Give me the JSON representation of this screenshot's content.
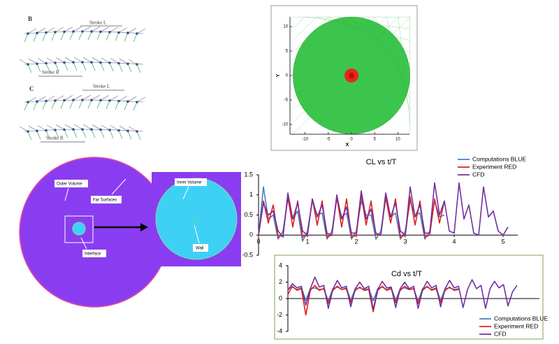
{
  "diagrams": {
    "wing_strokes": {
      "panels": [
        {
          "label": "B",
          "strokes": [
            "Stroke L",
            "Stroke R"
          ]
        },
        {
          "label": "C",
          "strokes": [
            "Stroke L",
            "Stroke R"
          ]
        }
      ]
    },
    "domain": {
      "labels": [
        "Outer Volume",
        "Far Surfaces",
        "Interface"
      ],
      "inset_labels": [
        "Inner Volume",
        "Wall"
      ]
    }
  },
  "chart_data": [
    {
      "type": "mesh",
      "xlabel": "X",
      "ylabel": "Y",
      "xlim": [
        -12.5,
        12.5
      ],
      "xticks": [
        -10,
        -5,
        0,
        5,
        10
      ],
      "ylim": [
        -12,
        12
      ],
      "yticks": [
        -10,
        -5,
        0,
        5,
        10
      ],
      "colors": [
        "#3cc54c",
        "#e8261e"
      ]
    },
    {
      "type": "line",
      "title": "CL vs t/T",
      "legend": "upper right",
      "xlim": [
        0,
        5.3
      ],
      "xticks": [
        0,
        1,
        2,
        3,
        4,
        5
      ],
      "ylim": [
        -0.5,
        1.5
      ],
      "yticks": [
        -0.5,
        0,
        0.5,
        1,
        1.5
      ],
      "x": [
        0,
        0.1,
        0.2,
        0.3,
        0.4,
        0.5,
        0.6,
        0.7,
        0.8,
        0.9,
        1,
        1.1,
        1.2,
        1.3,
        1.4,
        1.5,
        1.6,
        1.7,
        1.8,
        1.9,
        2,
        2.1,
        2.2,
        2.3,
        2.4,
        2.5,
        2.6,
        2.7,
        2.8,
        2.9,
        3,
        3.1,
        3.2,
        3.3,
        3.4,
        3.5,
        3.6,
        3.7,
        3.8,
        3.9,
        4,
        4.1,
        4.2,
        4.3,
        4.4,
        4.5,
        4.6,
        4.7,
        4.8,
        4.9,
        5,
        5.1
      ],
      "series": [
        {
          "name": "Computations BLUE",
          "color": "#4a7ebb",
          "values": [
            0,
            1.2,
            0.4,
            0.5,
            -0.1,
            0.1,
            0.9,
            0.4,
            0.6,
            -0.15,
            0.1,
            0.85,
            0.5,
            0.55,
            -0.1,
            0.1,
            0.9,
            0.45,
            0.55,
            -0.1,
            0.1,
            0.85,
            0.5,
            0.5,
            -0.1,
            0.1,
            0.9,
            0.45,
            0.55,
            -0.1,
            0.1,
            0.85,
            0.5,
            0.55,
            -0.1,
            0.1,
            0.85,
            0.45,
            0.5,
            null,
            null,
            null,
            null,
            null,
            null,
            null,
            null,
            null,
            null,
            null,
            null,
            null
          ]
        },
        {
          "name": "Experiment RED",
          "color": "#e0201b",
          "values": [
            0,
            0.85,
            0.3,
            0.75,
            -0.05,
            0,
            0.95,
            0.2,
            0.85,
            -0.05,
            0,
            0.9,
            0.25,
            0.85,
            -0.05,
            0,
            0.95,
            0.2,
            0.9,
            -0.05,
            0,
            1.0,
            0.25,
            0.85,
            0,
            0,
            0.95,
            0.3,
            0.9,
            -0.05,
            0,
            0.95,
            0.25,
            0.85,
            -0.05,
            0,
            0.9,
            0.3,
            0.85,
            null,
            null,
            null,
            null,
            null,
            null,
            null,
            null,
            null,
            null,
            null,
            null,
            null
          ]
        },
        {
          "name": "CFD",
          "color": "#7030a0",
          "values": [
            0,
            0.8,
            0.5,
            0.6,
            0.1,
            -0.05,
            1.05,
            0.4,
            0.8,
            0.1,
            0,
            0.9,
            0.45,
            0.75,
            0.05,
            0,
            1.0,
            0.4,
            0.7,
            0.05,
            0.05,
            1.1,
            0.4,
            0.65,
            0.05,
            0,
            1.05,
            0.45,
            0.8,
            0.1,
            0,
            1.2,
            0.45,
            0.75,
            0.05,
            0.05,
            1.3,
            0.5,
            0.85,
            0.1,
            0.05,
            1.3,
            0.4,
            0.75,
            0.05,
            0,
            1.2,
            0.45,
            0.6,
            0.1,
            0,
            0.2
          ]
        }
      ]
    },
    {
      "type": "line",
      "title": "Cd vs t/T",
      "legend": "lower right",
      "xlim": [
        0,
        5.6
      ],
      "ylim": [
        -4,
        4
      ],
      "yticks": [
        -4,
        -2,
        0,
        2,
        4
      ],
      "x": [
        0,
        0.1,
        0.2,
        0.3,
        0.4,
        0.5,
        0.6,
        0.7,
        0.8,
        0.9,
        1,
        1.1,
        1.2,
        1.3,
        1.4,
        1.5,
        1.6,
        1.7,
        1.8,
        1.9,
        2,
        2.1,
        2.2,
        2.3,
        2.4,
        2.5,
        2.6,
        2.7,
        2.8,
        2.9,
        3,
        3.1,
        3.2,
        3.3,
        3.4,
        3.5,
        3.6,
        3.7,
        3.8,
        3.9,
        4,
        4.1,
        4.2,
        4.3,
        4.4,
        4.5,
        4.6,
        4.7,
        4.8,
        4.9,
        5,
        5.1
      ],
      "series": [
        {
          "name": "Computations BLUE",
          "color": "#4a7ebb",
          "values": [
            1.2,
            1.4,
            1.1,
            1.3,
            -0.2,
            1.2,
            1.3,
            1.1,
            1.2,
            -0.3,
            1.2,
            1.4,
            1.1,
            1.3,
            -0.2,
            1.2,
            1.3,
            1.1,
            1.2,
            -0.3,
            1.2,
            1.4,
            1.1,
            1.3,
            -0.2,
            1.2,
            1.3,
            1.1,
            1.2,
            -0.3,
            1.2,
            1.4,
            1.1,
            1.3,
            -0.2,
            1.2,
            1.3,
            1.1,
            1.2,
            null,
            null,
            null,
            null,
            null,
            null,
            null,
            null,
            null,
            null,
            null,
            null,
            null
          ]
        },
        {
          "name": "Experiment RED",
          "color": "#e0201b",
          "values": [
            0.5,
            1.5,
            1.0,
            1.2,
            -2.0,
            1.0,
            1.6,
            1.0,
            1.2,
            -0.6,
            1.0,
            1.5,
            1.1,
            1.2,
            -0.5,
            1.0,
            1.4,
            1.0,
            1.1,
            -1.6,
            1.0,
            1.5,
            1.0,
            1.2,
            -0.5,
            1.0,
            1.5,
            1.1,
            1.2,
            -0.6,
            1.0,
            1.5,
            1.0,
            1.2,
            -0.5,
            1.0,
            1.4,
            1.0,
            1.1,
            null,
            null,
            null,
            null,
            null,
            null,
            null,
            null,
            null,
            null,
            null,
            null,
            null
          ]
        },
        {
          "name": "CFD",
          "color": "#7030a0",
          "values": [
            1.0,
            1.8,
            1.3,
            1.5,
            -0.8,
            1.2,
            2.6,
            1.4,
            1.6,
            -1.2,
            1.1,
            2.2,
            1.3,
            1.5,
            -1.0,
            1.2,
            2.0,
            1.2,
            1.5,
            -1.3,
            1.1,
            2.1,
            1.3,
            1.4,
            -1.1,
            1.2,
            2.0,
            1.2,
            1.5,
            -1.2,
            1.1,
            2.1,
            1.3,
            1.6,
            -1.0,
            1.2,
            2.2,
            1.3,
            1.5,
            -1.1,
            1.1,
            2.3,
            1.2,
            1.6,
            -1.2,
            1.2,
            2.1,
            1.3,
            1.7,
            -0.9,
            0.8,
            1.6
          ]
        }
      ]
    }
  ]
}
